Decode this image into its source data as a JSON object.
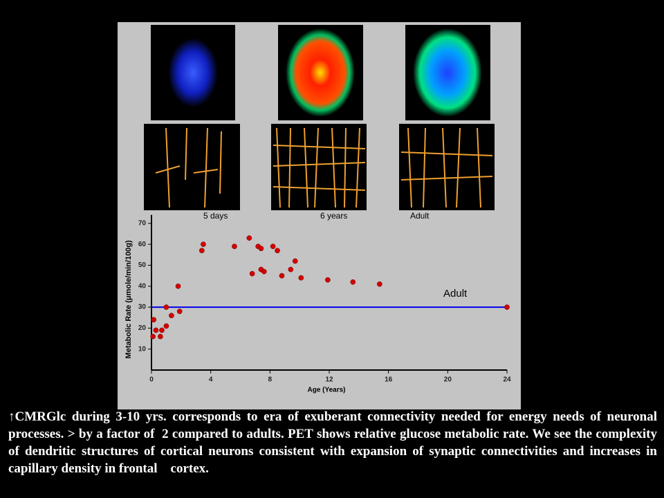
{
  "panels": {
    "labels": [
      "5 days",
      "6 years",
      "Adult"
    ]
  },
  "chart_data": {
    "type": "scatter",
    "xlabel": "Age (Years)",
    "ylabel": "Metabolic Rate (μmole/min/100g)",
    "series": [
      {
        "color": "#d40000",
        "x": [
          0.1,
          0.15,
          0.3,
          0.6,
          0.7,
          1.0,
          1.0,
          1.35,
          1.8,
          1.9,
          3.4,
          3.5,
          5.6,
          6.6,
          6.8,
          7.2,
          7.4,
          7.4,
          7.6,
          8.2,
          8.5,
          8.8,
          9.4,
          9.7,
          10.1,
          11.9,
          13.6,
          15.4,
          24
        ],
        "values": [
          16,
          24,
          19,
          16,
          19,
          21,
          30,
          26,
          40,
          28,
          57,
          60,
          59,
          63,
          46,
          59,
          58,
          48,
          47,
          59,
          57,
          45,
          48,
          52,
          44,
          43,
          42,
          41,
          30
        ]
      }
    ],
    "reference_line": {
      "value": 30,
      "label": "Adult",
      "color": "#0000ee"
    },
    "xlim": [
      0,
      24
    ],
    "ylim": [
      0,
      74
    ],
    "xticks": [
      0,
      4,
      8,
      12,
      16,
      20,
      24
    ],
    "yticks": [
      10,
      20,
      30,
      40,
      50,
      60,
      70
    ]
  },
  "caption": "↑CMRGlc during 3-10 yrs. corresponds to era of exuberant connectivity needed for energy needs of neuronal processes. > by a factor of  2 compared to adults. PET shows relative glucose metabolic rate. We see the complexity of dendritic structures of cortical neurons consistent with expansion of synaptic connectivities and increases in capillary density in frontal    cortex."
}
